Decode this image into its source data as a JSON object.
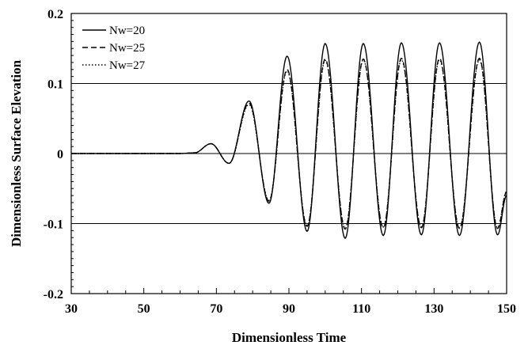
{
  "chart_data": {
    "type": "line",
    "title": "",
    "xlabel": "Dimensionless Time",
    "ylabel": "Dimensionless Surface Elevation",
    "xlim": [
      30,
      150
    ],
    "ylim": [
      -0.2,
      0.2
    ],
    "x_ticks": [
      "30",
      "50",
      "70",
      "90",
      "110",
      "130",
      "150"
    ],
    "y_ticks": [
      "0.2",
      "0.1",
      "0",
      "-0.1",
      "-0.2"
    ],
    "y_tick_values": [
      0.2,
      0.1,
      0,
      -0.1,
      -0.2
    ],
    "x_tick_values": [
      30,
      50,
      70,
      90,
      110,
      130,
      150
    ],
    "grid": "horizontal at ±0.1 and 0",
    "legend_position": "top-left",
    "series": [
      {
        "name": "Nw=20",
        "style": "solid",
        "x": [
          30,
          60,
          64,
          68.5,
          73.5,
          79,
          84.5,
          89.5,
          95,
          100,
          105.5,
          110.5,
          116,
          121,
          126.5,
          131.5,
          137,
          142.5,
          147.5,
          150
        ],
        "y": [
          0,
          0,
          0.001,
          0.014,
          -0.014,
          0.075,
          -0.071,
          0.139,
          -0.111,
          0.157,
          -0.121,
          0.157,
          -0.117,
          0.158,
          -0.116,
          0.158,
          -0.117,
          0.159,
          -0.116,
          -0.06
        ]
      },
      {
        "name": "Nw=25",
        "style": "dashed",
        "x": [
          30,
          60,
          64,
          68.5,
          73.5,
          79,
          84.5,
          89.5,
          95,
          100,
          105.5,
          110.5,
          116,
          121,
          126.5,
          131.5,
          137,
          142.5,
          147.5,
          150
        ],
        "y": [
          0,
          0,
          0.001,
          0.014,
          -0.014,
          0.072,
          -0.068,
          0.12,
          -0.104,
          0.135,
          -0.108,
          0.135,
          -0.106,
          0.136,
          -0.106,
          0.136,
          -0.107,
          0.136,
          -0.107,
          -0.055
        ]
      },
      {
        "name": "Nw=27",
        "style": "dotted",
        "x": [
          30,
          60,
          64,
          68.5,
          73.5,
          79,
          84.5,
          89.5,
          95,
          100,
          105.5,
          110.5,
          116,
          121,
          126.5,
          131.5,
          137,
          142.5,
          147.5,
          150
        ],
        "y": [
          0,
          0,
          0.001,
          0.014,
          -0.014,
          0.07,
          -0.067,
          0.118,
          -0.103,
          0.133,
          -0.107,
          0.134,
          -0.105,
          0.134,
          -0.105,
          0.134,
          -0.106,
          0.134,
          -0.106,
          -0.054
        ]
      }
    ]
  }
}
